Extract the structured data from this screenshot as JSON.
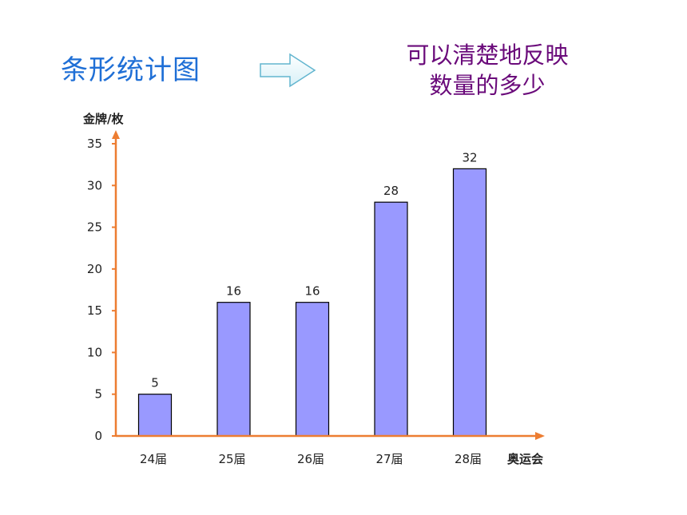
{
  "heading": "条形统计图",
  "description": [
    "可以清楚地反映",
    "数量的多少"
  ],
  "colors": {
    "heading": "#1f6fd6",
    "description": "#6a0a7a",
    "bar": "#9999ff",
    "axis": "#ed7d31"
  },
  "icons": {
    "arrow": "right-arrow-icon"
  },
  "chart_data": {
    "type": "bar",
    "categories": [
      "24届",
      "25届",
      "26届",
      "27届",
      "28届"
    ],
    "values": [
      5,
      16,
      16,
      28,
      32
    ],
    "ylabel": "金牌/枚",
    "xlabel": "奥运会",
    "ylim": [
      0,
      35
    ],
    "yticks": [
      0,
      5,
      10,
      15,
      20,
      25,
      30,
      35
    ],
    "grid": false,
    "data_labels": true
  }
}
